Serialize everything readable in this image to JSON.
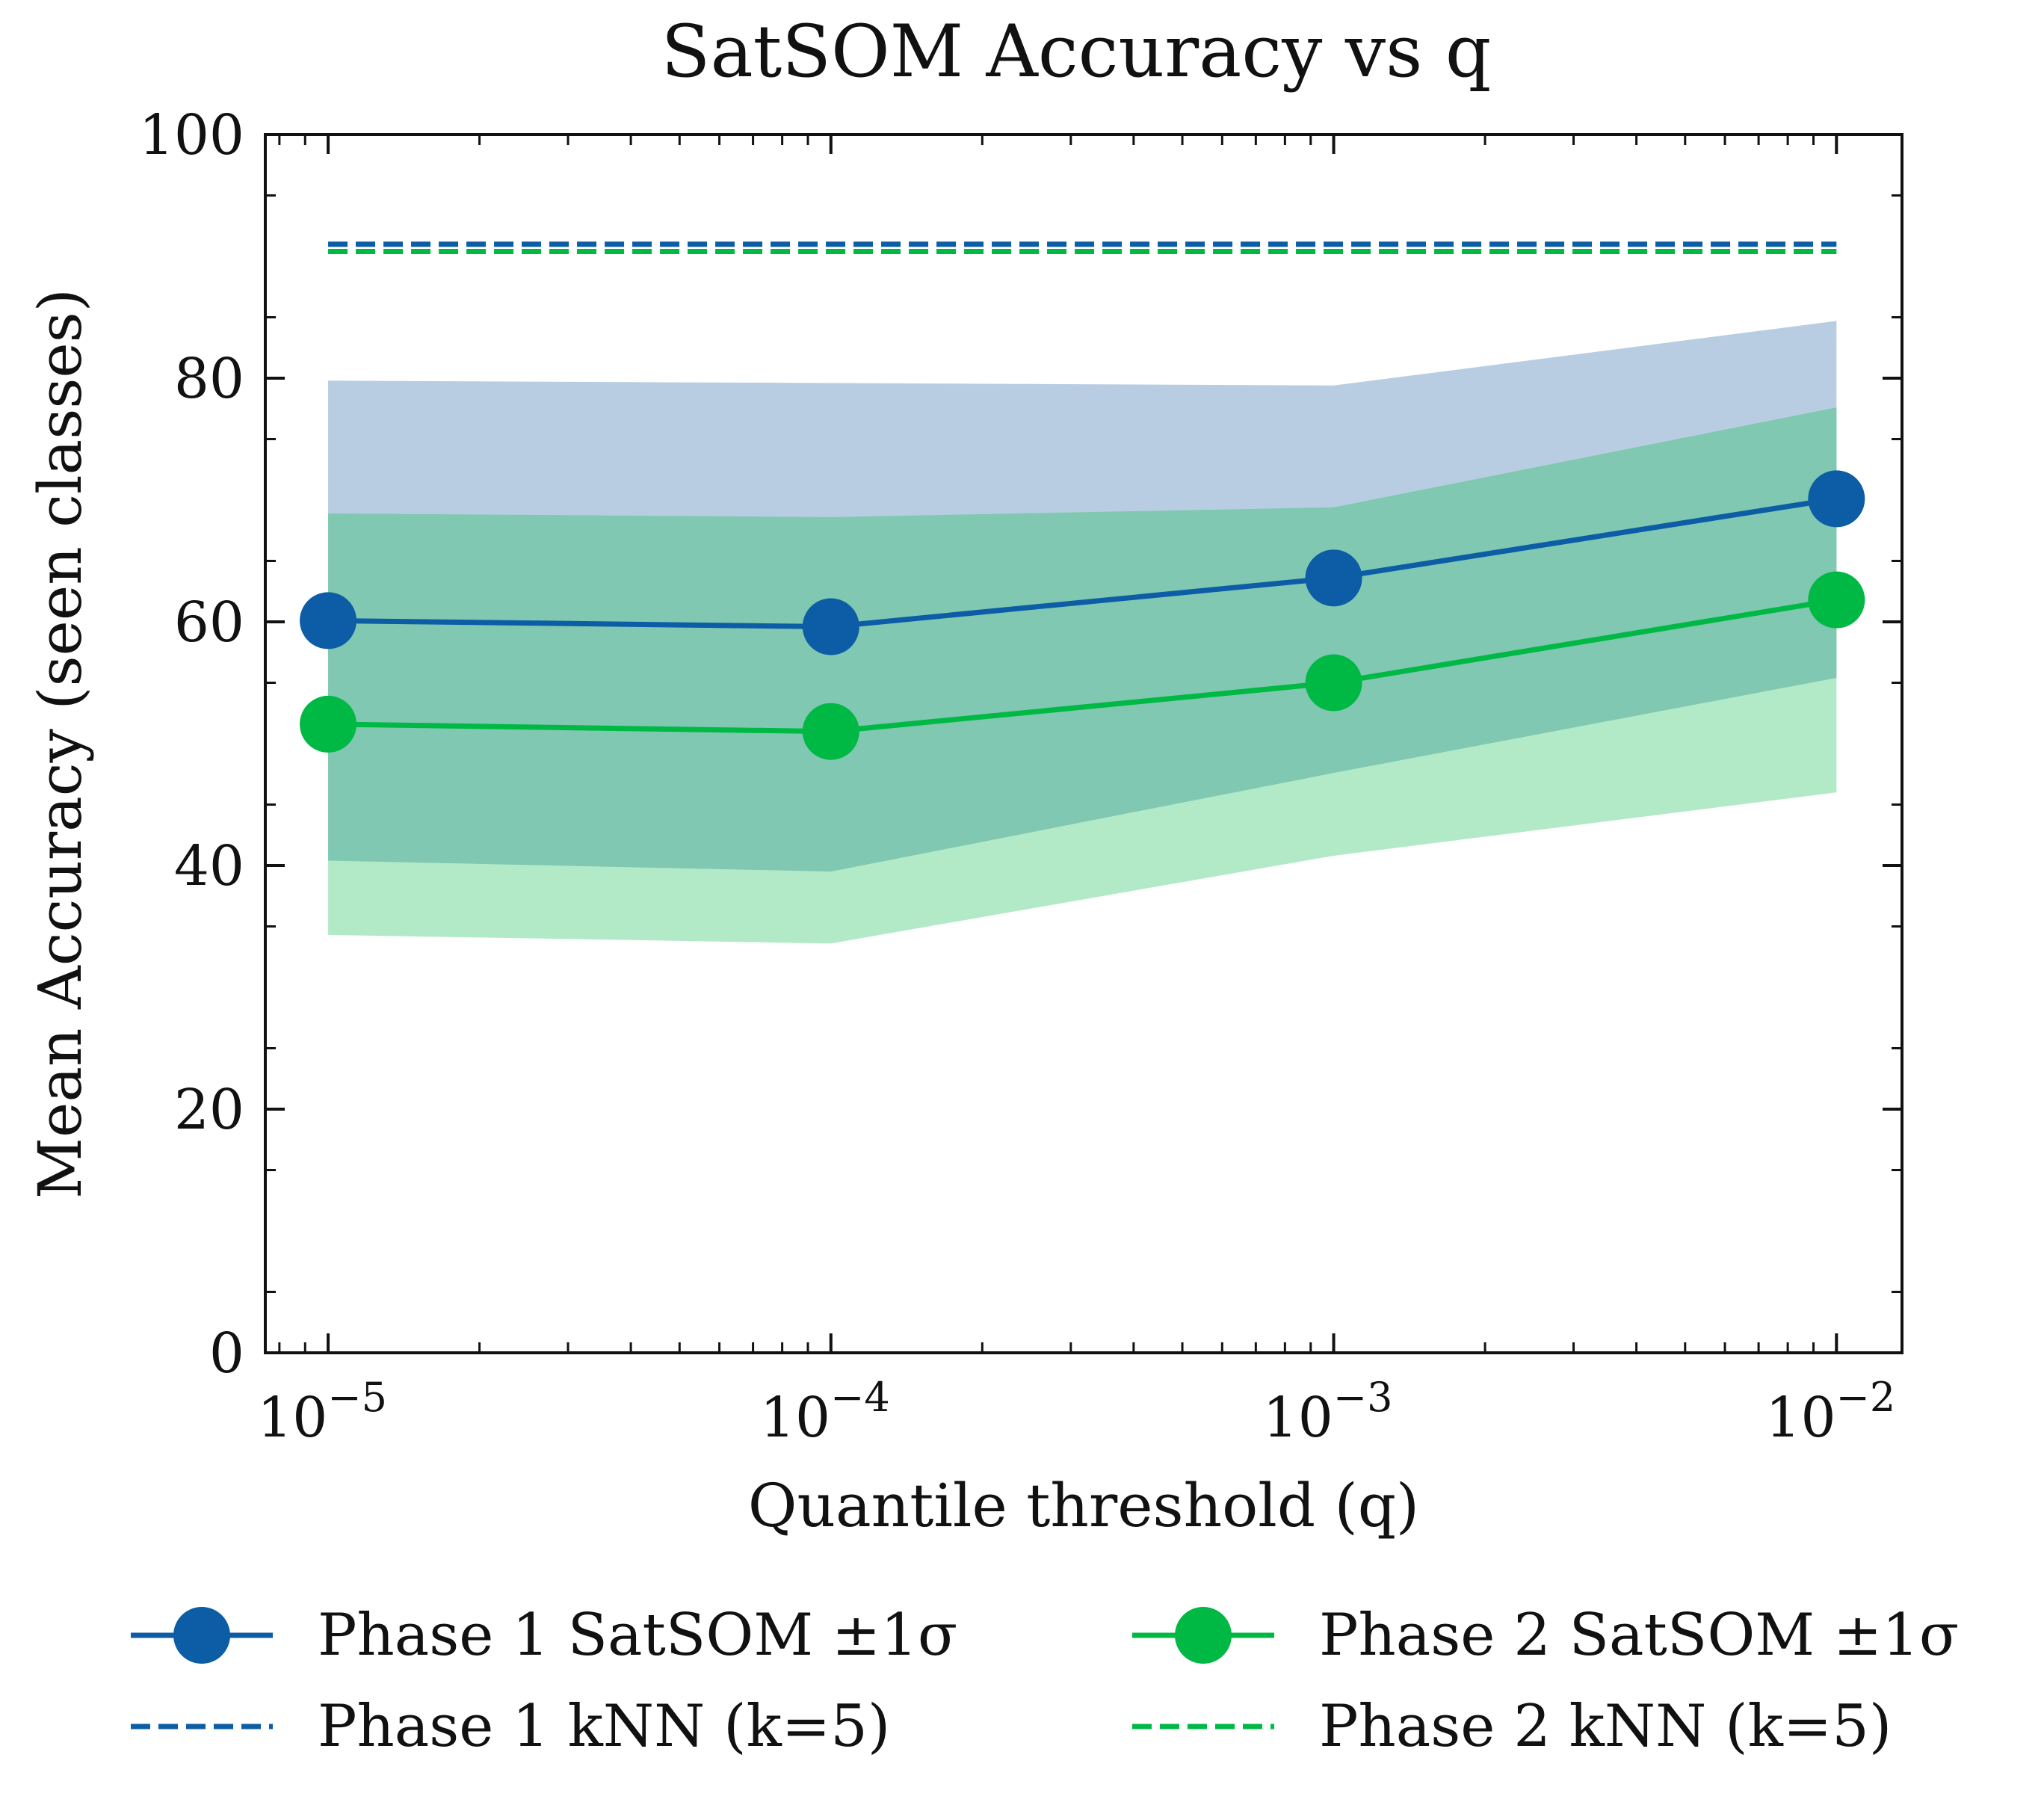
{
  "chart_data": {
    "type": "line",
    "title": "SatSOM Accuracy vs q",
    "xlabel": "Quantile threshold (q)",
    "ylabel": "Mean Accuracy (seen classes)",
    "x_scale": "log",
    "x": [
      1e-05,
      0.0001,
      0.001,
      0.01
    ],
    "x_tick_labels": [
      {
        "base": "10",
        "exp": "−5"
      },
      {
        "base": "10",
        "exp": "−4"
      },
      {
        "base": "10",
        "exp": "−3"
      },
      {
        "base": "10",
        "exp": "−2"
      }
    ],
    "xlim": [
      7.5e-06,
      0.0135
    ],
    "ylim": [
      0,
      100
    ],
    "y_ticks": [
      0,
      20,
      40,
      60,
      80,
      100
    ],
    "y_tick_labels": [
      "0",
      "20",
      "40",
      "60",
      "80",
      "100"
    ],
    "grid": false,
    "legend_position": "bottom",
    "series": [
      {
        "name": "Phase 1 SatSOM ±1σ",
        "kind": "line-markers-band",
        "color": "#0C5DA5",
        "band_color": "#B8CDE2",
        "values": [
          60.1,
          59.6,
          63.6,
          70.1
        ],
        "band_lower": [
          40.4,
          39.5,
          47.6,
          55.4
        ],
        "band_upper": [
          79.8,
          79.6,
          79.4,
          84.7
        ]
      },
      {
        "name": "Phase 2 SatSOM ±1σ",
        "kind": "line-markers-band",
        "color": "#00B945",
        "band_color": "#B2EAC7",
        "values": [
          51.6,
          51.0,
          55.0,
          61.8
        ],
        "band_lower": [
          34.3,
          33.6,
          40.8,
          46.0
        ],
        "band_upper": [
          68.9,
          68.6,
          69.4,
          77.6
        ]
      },
      {
        "name": "Phase 1 kNN (k=5)",
        "kind": "dashed-hline",
        "color": "#0C5DA5",
        "value": 91.0
      },
      {
        "name": "Phase 2 kNN (k=5)",
        "kind": "dashed-hline",
        "color": "#00B945",
        "value": 90.4
      }
    ],
    "overlap_color": "#80C8B2"
  }
}
